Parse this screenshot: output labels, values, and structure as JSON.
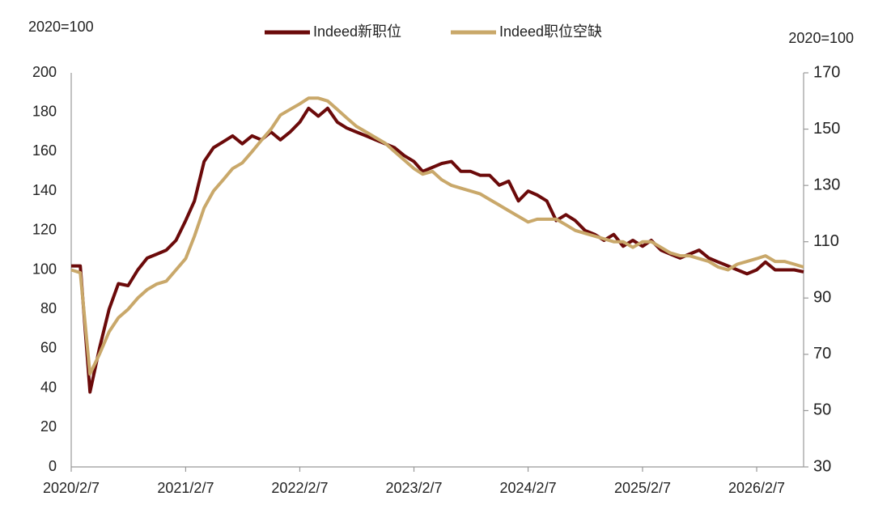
{
  "chart_data": {
    "type": "line",
    "y_unit_label": "2020=100",
    "y2_unit_label": "2020=100",
    "x": [
      "2020/2/7",
      "2020/3/7",
      "2020/4/7",
      "2020/5/7",
      "2020/6/7",
      "2020/7/7",
      "2020/8/7",
      "2020/9/7",
      "2020/10/7",
      "2020/11/7",
      "2020/12/7",
      "2021/1/7",
      "2021/2/7",
      "2021/3/7",
      "2021/4/7",
      "2021/5/7",
      "2021/6/7",
      "2021/7/7",
      "2021/8/7",
      "2021/9/7",
      "2021/10/7",
      "2021/11/7",
      "2021/12/7",
      "2022/1/7",
      "2022/2/7",
      "2022/3/7",
      "2022/4/7",
      "2022/5/7",
      "2022/6/7",
      "2022/7/7",
      "2022/8/7",
      "2022/9/7",
      "2022/10/7",
      "2022/11/7",
      "2022/12/7",
      "2023/1/7",
      "2023/2/7",
      "2023/3/7",
      "2023/4/7",
      "2023/5/7",
      "2023/6/7",
      "2023/7/7",
      "2023/8/7",
      "2023/9/7",
      "2023/10/7",
      "2023/11/7",
      "2023/12/7",
      "2024/1/7",
      "2024/2/7",
      "2024/3/7",
      "2024/4/7",
      "2024/5/7",
      "2024/6/7",
      "2024/7/7",
      "2024/8/7",
      "2024/9/7",
      "2024/10/7",
      "2024/11/7",
      "2024/12/7",
      "2025/1/7",
      "2025/2/7",
      "2025/3/7",
      "2025/4/7",
      "2025/5/7",
      "2025/6/7",
      "2025/7/7",
      "2025/8/7",
      "2025/9/7",
      "2025/10/7",
      "2025/11/7",
      "2025/12/7",
      "2026/1/7",
      "2026/2/7",
      "2026/3/7",
      "2026/4/7",
      "2026/5/7",
      "2026/6/7",
      "2026/7/7"
    ],
    "series": [
      {
        "name": "Indeed新职位",
        "color": "#6b0a0a",
        "axis": "y",
        "values": [
          102,
          102,
          38,
          60,
          80,
          93,
          92,
          100,
          106,
          108,
          110,
          115,
          125,
          135,
          155,
          162,
          165,
          168,
          164,
          168,
          166,
          170,
          166,
          170,
          175,
          182,
          178,
          182,
          175,
          172,
          170,
          168,
          166,
          164,
          162,
          158,
          155,
          150,
          152,
          154,
          155,
          150,
          150,
          148,
          148,
          143,
          145,
          135,
          140,
          138,
          135,
          125,
          128,
          125,
          120,
          118,
          115,
          118,
          112,
          115,
          112,
          115,
          110,
          108,
          106,
          108,
          110,
          106,
          104,
          102,
          100,
          98,
          100,
          104,
          100,
          100,
          100,
          99
        ]
      },
      {
        "name": "Indeed职位空缺",
        "color": "#c9a86a",
        "axis": "y2",
        "values": [
          100,
          99,
          63,
          70,
          78,
          83,
          86,
          90,
          93,
          95,
          96,
          100,
          104,
          112,
          122,
          128,
          132,
          136,
          138,
          142,
          146,
          150,
          155,
          157,
          159,
          161,
          161,
          160,
          157,
          154,
          151,
          149,
          147,
          145,
          142,
          139,
          136,
          134,
          135,
          132,
          130,
          129,
          128,
          127,
          125,
          123,
          121,
          119,
          117,
          118,
          118,
          118,
          116,
          114,
          113,
          112,
          111,
          110,
          110,
          108,
          110,
          110,
          108,
          106,
          105,
          105,
          104,
          103,
          101,
          100,
          102,
          103,
          104,
          105,
          103,
          103,
          102,
          101
        ]
      }
    ],
    "xlim": [
      "2020/2/7",
      "2026/7/7"
    ],
    "xticks": [
      "2020/2/7",
      "2021/2/7",
      "2022/2/7",
      "2023/2/7",
      "2024/2/7",
      "2025/2/7",
      "2026/2/7"
    ],
    "ylim": [
      0,
      200
    ],
    "yticks": [
      0,
      20,
      40,
      60,
      80,
      100,
      120,
      140,
      160,
      180,
      200
    ],
    "y2lim": [
      30,
      170
    ],
    "y2ticks": [
      30,
      50,
      70,
      90,
      110,
      130,
      150,
      170
    ],
    "grid": false
  }
}
